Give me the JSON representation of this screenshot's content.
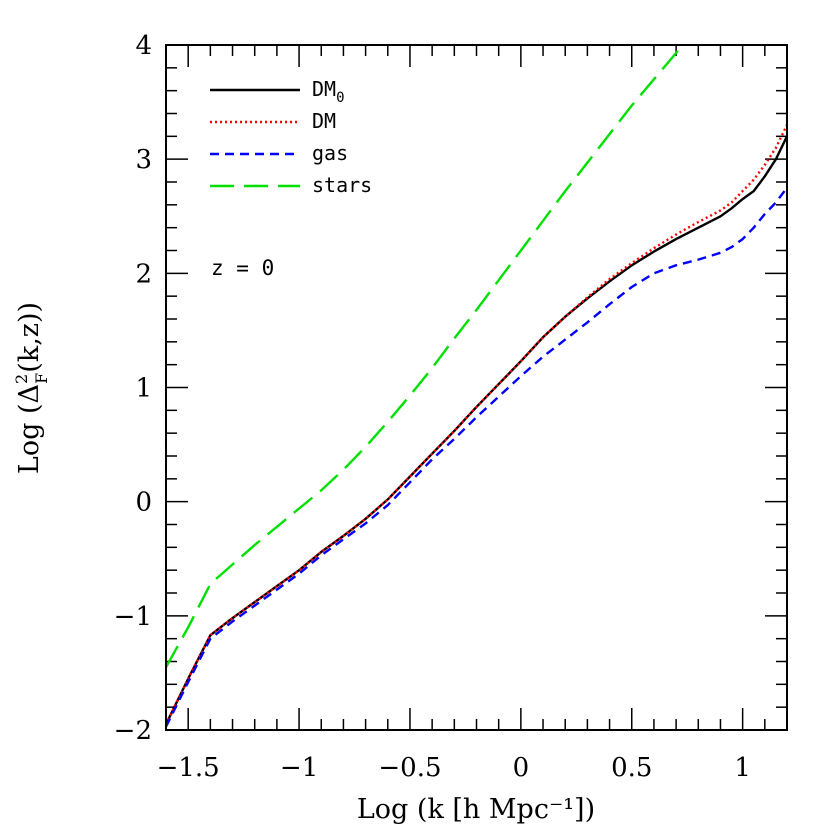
{
  "chart_data": {
    "type": "line",
    "title": "",
    "xlabel": "Log (k [h Mpc⁻¹])",
    "ylabel_prefix": "Log (Δ",
    "ylabel_sup": "2",
    "ylabel_sub": "F",
    "ylabel_suffix": "(k,z))",
    "xlim": [
      -1.6,
      1.2
    ],
    "ylim": [
      -2,
      4
    ],
    "x_ticks": [
      {
        "value": -1.5,
        "label": "−1.5"
      },
      {
        "value": -1.0,
        "label": "−1"
      },
      {
        "value": -0.5,
        "label": "−0.5"
      },
      {
        "value": 0.0,
        "label": "0"
      },
      {
        "value": 0.5,
        "label": "0.5"
      },
      {
        "value": 1.0,
        "label": "1"
      }
    ],
    "y_ticks": [
      {
        "value": -2,
        "label": "−2"
      },
      {
        "value": -1,
        "label": "−1"
      },
      {
        "value": 0,
        "label": "0"
      },
      {
        "value": 1,
        "label": "1"
      },
      {
        "value": 2,
        "label": "2"
      },
      {
        "value": 3,
        "label": "3"
      },
      {
        "value": 4,
        "label": "4"
      }
    ],
    "x_minor_step": 0.1,
    "y_minor_step": 0.2,
    "grid": false,
    "legend_position": "top-left",
    "annotation": "z = 0",
    "series": [
      {
        "name": "DM",
        "name_sub": "0",
        "color": "#000000",
        "style": "solid",
        "x": [
          -1.6,
          -1.5,
          -1.4,
          -1.3,
          -1.2,
          -1.1,
          -1.0,
          -0.9,
          -0.8,
          -0.7,
          -0.6,
          -0.5,
          -0.4,
          -0.3,
          -0.2,
          -0.1,
          0.0,
          0.1,
          0.2,
          0.3,
          0.4,
          0.5,
          0.6,
          0.7,
          0.8,
          0.9,
          0.95,
          1.0,
          1.05,
          1.1,
          1.15,
          1.2
        ],
        "y": [
          -1.95,
          -1.55,
          -1.17,
          -1.02,
          -0.88,
          -0.74,
          -0.6,
          -0.44,
          -0.3,
          -0.15,
          0.02,
          0.22,
          0.42,
          0.62,
          0.83,
          1.03,
          1.23,
          1.44,
          1.62,
          1.78,
          1.93,
          2.07,
          2.19,
          2.3,
          2.4,
          2.5,
          2.57,
          2.65,
          2.72,
          2.85,
          3.0,
          3.2
        ]
      },
      {
        "name": "DM",
        "name_sub": "",
        "color": "#ff0000",
        "style": "dotted",
        "x": [
          -1.6,
          -1.5,
          -1.4,
          -1.3,
          -1.2,
          -1.1,
          -1.0,
          -0.9,
          -0.8,
          -0.7,
          -0.6,
          -0.5,
          -0.4,
          -0.3,
          -0.2,
          -0.1,
          0.0,
          0.1,
          0.2,
          0.3,
          0.4,
          0.5,
          0.6,
          0.7,
          0.8,
          0.9,
          0.95,
          1.0,
          1.05,
          1.1,
          1.15,
          1.2
        ],
        "y": [
          -1.95,
          -1.55,
          -1.17,
          -1.02,
          -0.88,
          -0.74,
          -0.6,
          -0.44,
          -0.3,
          -0.15,
          0.02,
          0.22,
          0.42,
          0.62,
          0.83,
          1.03,
          1.23,
          1.44,
          1.62,
          1.79,
          1.95,
          2.09,
          2.22,
          2.34,
          2.45,
          2.55,
          2.62,
          2.72,
          2.82,
          2.95,
          3.1,
          3.3
        ]
      },
      {
        "name": "gas",
        "name_sub": "",
        "color": "#0000ff",
        "style": "dashed",
        "x": [
          -1.6,
          -1.5,
          -1.4,
          -1.3,
          -1.2,
          -1.1,
          -1.0,
          -0.9,
          -0.8,
          -0.7,
          -0.6,
          -0.5,
          -0.4,
          -0.3,
          -0.2,
          -0.1,
          0.0,
          0.1,
          0.2,
          0.3,
          0.4,
          0.5,
          0.6,
          0.7,
          0.8,
          0.9,
          0.95,
          1.0,
          1.05,
          1.1,
          1.15,
          1.2
        ],
        "y": [
          -1.97,
          -1.58,
          -1.2,
          -1.05,
          -0.91,
          -0.77,
          -0.63,
          -0.47,
          -0.33,
          -0.19,
          -0.03,
          0.17,
          0.37,
          0.55,
          0.74,
          0.92,
          1.1,
          1.27,
          1.42,
          1.57,
          1.73,
          1.88,
          2.0,
          2.07,
          2.12,
          2.18,
          2.23,
          2.3,
          2.4,
          2.52,
          2.62,
          2.75
        ]
      },
      {
        "name": "stars",
        "name_sub": "",
        "color": "#00e000",
        "style": "longdash",
        "x": [
          -1.6,
          -1.5,
          -1.4,
          -1.3,
          -1.2,
          -1.1,
          -1.0,
          -0.9,
          -0.8,
          -0.7,
          -0.6,
          -0.5,
          -0.4,
          -0.3,
          -0.2,
          -0.1,
          0.0,
          0.1,
          0.2,
          0.3,
          0.4,
          0.5,
          0.6,
          0.7,
          0.73
        ],
        "y": [
          -1.45,
          -1.1,
          -0.72,
          -0.55,
          -0.38,
          -0.22,
          -0.06,
          0.1,
          0.28,
          0.48,
          0.7,
          0.93,
          1.17,
          1.43,
          1.68,
          1.94,
          2.2,
          2.46,
          2.72,
          2.97,
          3.22,
          3.47,
          3.7,
          3.93,
          4.0
        ]
      }
    ]
  }
}
